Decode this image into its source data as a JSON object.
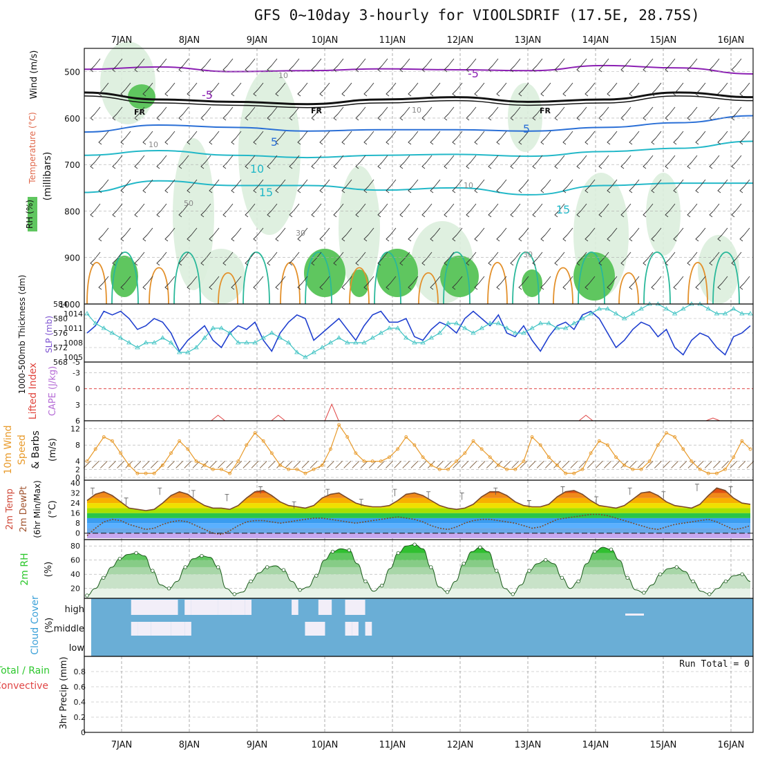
{
  "title": "GFS 0~10day 3-hourly for VIOOLSDRIF (17.5E, 28.75S)",
  "colors": {
    "rh_green": "#5fc65f",
    "rh_light": "#dceedd",
    "freezing": "#111111",
    "temp_neg": "#8b1fb3",
    "temp_mid": "#2a6fd6",
    "temp_warm": "#22b8c8",
    "thickness": "#1f3fcf",
    "slp": "#3cc2c2",
    "wind10m": "#e89a2a",
    "cloud_bg": "#6aaed6",
    "rh2m": "#2cc72c"
  },
  "chart_data": [
    {
      "type": "contour",
      "panel": "upper-air",
      "ylabel_parts": [
        "RH (%)",
        "Temperature (°C)",
        "Wind (m/s)"
      ],
      "ylabel_units": "(millibars)",
      "x_date_labels": [
        "7JAN",
        "8JAN",
        "9JAN",
        "10JAN",
        "11JAN",
        "12JAN",
        "13JAN",
        "14JAN",
        "15JAN",
        "16JAN"
      ],
      "yticks": [
        500,
        600,
        700,
        800,
        900,
        1000
      ],
      "ylim": [
        450,
        1000
      ],
      "contour_labels": [
        "-5",
        "-5",
        "5",
        "5",
        "10",
        "15",
        "15",
        "FR",
        "FR",
        "FR",
        "10",
        "10",
        "10",
        "10",
        "50",
        "30",
        "30"
      ],
      "freezing_level_mb": [
        545,
        560,
        565,
        570,
        560,
        555,
        565,
        560,
        545,
        555
      ],
      "temp_contours": [
        {
          "value": -5,
          "mb": [
            495,
            490,
            500,
            498,
            494,
            496,
            498,
            487,
            492,
            505
          ]
        },
        {
          "value": 5,
          "mb": [
            630,
            615,
            620,
            628,
            625,
            625,
            628,
            620,
            610,
            595
          ]
        },
        {
          "value": 10,
          "mb": [
            680,
            670,
            680,
            685,
            680,
            678,
            682,
            672,
            665,
            650
          ]
        },
        {
          "value": 15,
          "mb": [
            760,
            735,
            745,
            745,
            755,
            750,
            765,
            745,
            740,
            740
          ]
        }
      ]
    },
    {
      "type": "line",
      "panel": "thickness-slp",
      "ylabel_left": "1000-500mb Thickness (dm)",
      "ylabel_right": "SLP (mb)",
      "yticks_left": [
        568,
        572,
        576,
        580,
        584
      ],
      "yticks_right": [
        1005,
        1008,
        1011,
        1014
      ],
      "ylim_left": [
        568,
        584
      ],
      "series": [
        {
          "name": "thickness",
          "values": [
            576,
            578,
            582,
            581,
            582,
            580,
            577,
            578,
            580,
            579,
            576,
            571,
            574,
            576,
            578,
            574,
            572,
            576,
            578,
            577,
            579,
            574,
            571,
            576,
            579,
            581,
            580,
            574,
            576,
            578,
            580,
            577,
            574,
            578,
            581,
            582,
            579,
            579,
            580,
            575,
            574,
            577,
            579,
            578,
            576,
            580,
            582,
            580,
            578,
            581,
            576,
            575,
            578,
            574,
            571,
            575,
            578,
            579,
            577,
            581,
            582,
            580,
            576,
            572,
            574,
            577,
            579,
            578,
            575,
            577,
            572,
            570,
            574,
            576,
            575,
            572,
            570,
            575,
            576,
            578
          ]
        },
        {
          "name": "slp",
          "values": [
            1014,
            1012,
            1011,
            1010,
            1009,
            1008,
            1007,
            1008,
            1008,
            1009,
            1008,
            1006,
            1006,
            1007,
            1009,
            1011,
            1011,
            1010,
            1008,
            1008,
            1008,
            1009,
            1010,
            1009,
            1008,
            1006,
            1005,
            1006,
            1007,
            1008,
            1009,
            1008,
            1008,
            1008,
            1009,
            1010,
            1011,
            1011,
            1009,
            1008,
            1008,
            1009,
            1010,
            1012,
            1012,
            1011,
            1010,
            1011,
            1012,
            1012,
            1011,
            1010,
            1010,
            1011,
            1012,
            1012,
            1011,
            1011,
            1012,
            1013,
            1014,
            1015,
            1015,
            1014,
            1013,
            1014,
            1015,
            1016,
            1016,
            1015,
            1014,
            1015,
            1016,
            1016,
            1015,
            1014,
            1014,
            1015,
            1014,
            1014
          ]
        }
      ]
    },
    {
      "type": "line",
      "panel": "lifted-cape",
      "ylabel_left": "Lifted Index",
      "ylabel_right": "CAPE (J/kg)",
      "yticks": [
        -5,
        -3,
        0,
        3,
        6
      ],
      "ylim": [
        6,
        -5
      ],
      "zero_line": 0,
      "cape_spikes": [
        {
          "x": 2.0,
          "value": 1
        },
        {
          "x": 2.9,
          "value": 1
        },
        {
          "x": 3.7,
          "value": 3
        },
        {
          "x": 7.5,
          "value": 1
        },
        {
          "x": 9.4,
          "value": 0.5
        }
      ]
    },
    {
      "type": "line",
      "panel": "wind10m",
      "ylabel": "10m Wind Speed & Barbs",
      "yunit": "(m/s)",
      "yticks": [
        0,
        2,
        4,
        8,
        12
      ],
      "ylim": [
        0,
        14
      ],
      "series": [
        {
          "name": "10m wind",
          "values": [
            4,
            7,
            10,
            9,
            6,
            3,
            1,
            1,
            1,
            3,
            6,
            9,
            7,
            4,
            3,
            2,
            2,
            1,
            4,
            8,
            11,
            9,
            6,
            3,
            2,
            2,
            1,
            2,
            3,
            7,
            13,
            10,
            6,
            4,
            4,
            4,
            5,
            7,
            10,
            8,
            5,
            3,
            2,
            2,
            4,
            6,
            9,
            7,
            5,
            3,
            2,
            2,
            4,
            10,
            8,
            5,
            3,
            1,
            1,
            2,
            6,
            9,
            8,
            5,
            3,
            2,
            2,
            4,
            8,
            11,
            10,
            7,
            4,
            2,
            1,
            1,
            2,
            5,
            9,
            7
          ]
        }
      ]
    },
    {
      "type": "area",
      "panel": "temp2m",
      "ylabel": "2m Temp 2m DewPt (6hr Min/Max)",
      "yunit": "(°C)",
      "yticks": [
        0,
        8,
        16,
        24,
        32,
        40
      ],
      "ylim": [
        -4,
        40
      ],
      "series": [
        {
          "name": "temp",
          "values": [
            26,
            31,
            33,
            30,
            25,
            20,
            19,
            18,
            19,
            24,
            30,
            33,
            31,
            26,
            22,
            20,
            20,
            19,
            22,
            28,
            33,
            34,
            30,
            25,
            22,
            21,
            20,
            22,
            28,
            31,
            32,
            28,
            24,
            22,
            21,
            21,
            22,
            26,
            31,
            32,
            30,
            26,
            22,
            20,
            19,
            20,
            23,
            29,
            33,
            33,
            30,
            25,
            22,
            21,
            21,
            23,
            29,
            33,
            34,
            31,
            26,
            22,
            21,
            20,
            22,
            27,
            32,
            33,
            30,
            25,
            22,
            21,
            20,
            23,
            30,
            36,
            34,
            28,
            24,
            23
          ]
        },
        {
          "name": "dewpoint",
          "values": [
            -2,
            4,
            9,
            11,
            10,
            7,
            5,
            3,
            4,
            7,
            9,
            10,
            9,
            6,
            3,
            0,
            -1,
            2,
            6,
            9,
            10,
            10,
            9,
            8,
            9,
            10,
            11,
            12,
            12,
            11,
            10,
            9,
            8,
            9,
            10,
            11,
            12,
            13,
            12,
            11,
            9,
            6,
            4,
            3,
            5,
            8,
            10,
            11,
            11,
            10,
            9,
            8,
            6,
            4,
            5,
            8,
            11,
            12,
            13,
            14,
            15,
            15,
            14,
            12,
            10,
            8,
            6,
            4,
            3,
            5,
            7,
            8,
            9,
            10,
            11,
            9,
            6,
            3,
            4,
            6
          ]
        }
      ]
    },
    {
      "type": "area",
      "panel": "rh2m",
      "ylabel": "2m RH",
      "yunit": "(%)",
      "yticks": [
        20,
        40,
        60,
        80
      ],
      "ylim": [
        8,
        88
      ],
      "series": [
        {
          "name": "rh",
          "values": [
            10,
            20,
            35,
            50,
            62,
            68,
            70,
            66,
            45,
            25,
            20,
            30,
            50,
            62,
            66,
            64,
            50,
            20,
            12,
            15,
            30,
            42,
            50,
            52,
            46,
            30,
            18,
            22,
            38,
            60,
            72,
            76,
            74,
            55,
            30,
            16,
            24,
            48,
            70,
            80,
            82,
            76,
            50,
            22,
            15,
            30,
            55,
            72,
            78,
            72,
            45,
            20,
            12,
            25,
            45,
            55,
            60,
            55,
            35,
            20,
            30,
            55,
            72,
            78,
            75,
            60,
            35,
            18,
            14,
            25,
            40,
            48,
            50,
            44,
            30,
            16,
            12,
            20,
            30,
            38,
            40,
            30
          ]
        }
      ]
    },
    {
      "type": "heatmap",
      "panel": "cloud",
      "ylabel": "Cloud Cover",
      "yunit": "(%)",
      "yticks": [
        "high",
        "middle",
        "low"
      ],
      "high_blocks": [
        [
          0.7,
          1.4
        ],
        [
          1.5,
          1.6
        ],
        [
          1.6,
          2.0
        ],
        [
          2.0,
          2.2
        ],
        [
          2.2,
          2.4
        ],
        [
          2.4,
          2.5
        ],
        [
          3.1,
          3.2
        ],
        [
          3.5,
          3.7
        ],
        [
          3.9,
          4.2
        ]
      ],
      "mid_blocks": [
        [
          0.7,
          0.8
        ],
        [
          0.8,
          1.0
        ],
        [
          1.0,
          1.3
        ],
        [
          1.3,
          1.5
        ],
        [
          1.5,
          1.6
        ],
        [
          3.3,
          3.6
        ],
        [
          3.9,
          4.0
        ],
        [
          4.0,
          4.1
        ],
        [
          4.2,
          4.3
        ]
      ]
    },
    {
      "type": "bar",
      "panel": "precip",
      "ylabel": "3hr Precip (mm)",
      "ylabel_left": "Total / Rain",
      "ylabel_left2": "Convective",
      "annotation": "Run Total = 0",
      "yticks": [
        0,
        0.2,
        0.4,
        0.6,
        0.8
      ],
      "ylim": [
        0,
        1.0
      ],
      "values": []
    }
  ]
}
